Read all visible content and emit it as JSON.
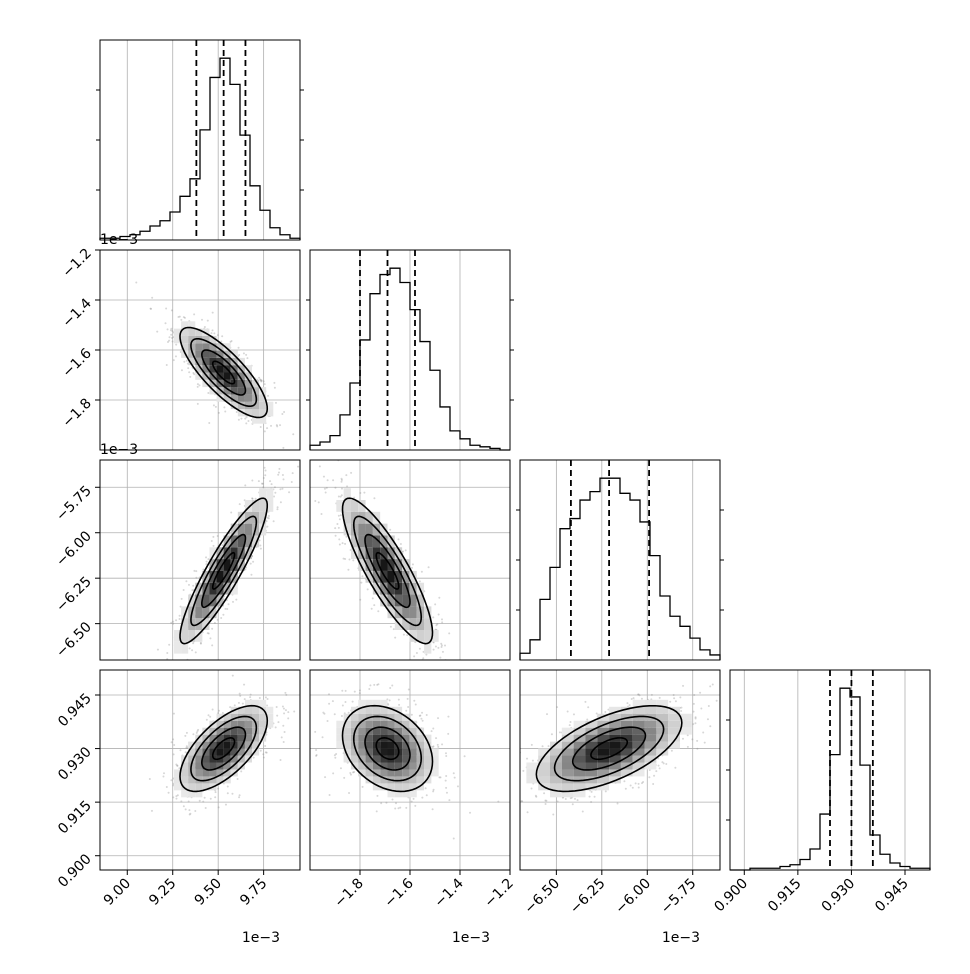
{
  "chart_data": {
    "type": "corner",
    "parameters": [
      {
        "xlim": [
          8.85,
          9.95
        ],
        "ticks": [
          9.0,
          9.25,
          9.5,
          9.75
        ],
        "tick_labels": [
          "9.00",
          "9.25",
          "9.50",
          "9.75"
        ],
        "offset_label": "1e−3"
      },
      {
        "xlim": [
          -2.0,
          -1.2
        ],
        "ticks": [
          -1.8,
          -1.6,
          -1.4,
          -1.2
        ],
        "tick_labels": [
          "−1.8",
          "−1.6",
          "−1.4",
          "−1.2"
        ],
        "offset_label": "1e−3"
      },
      {
        "xlim": [
          -6.7,
          -5.6
        ],
        "ticks": [
          -6.5,
          -6.25,
          -6.0,
          -5.75
        ],
        "tick_labels": [
          "−6.50",
          "−6.25",
          "−6.00",
          "−5.75"
        ],
        "offset_label": "1e−3"
      },
      {
        "xlim": [
          0.896,
          0.952
        ],
        "ticks": [
          0.9,
          0.915,
          0.93,
          0.945
        ],
        "tick_labels": [
          "0.900",
          "0.915",
          "0.930",
          "0.945"
        ],
        "offset_label": ""
      }
    ],
    "marginals": [
      {
        "quantiles": [
          9.38,
          9.53,
          9.65
        ],
        "hist": [
          1,
          1,
          2,
          3,
          5,
          8,
          11,
          16,
          25,
          35,
          63,
          93,
          104,
          89,
          60,
          31,
          17,
          7,
          3,
          1
        ]
      },
      {
        "quantiles": [
          -1.8,
          -1.69,
          -1.58
        ],
        "hist": [
          3,
          5,
          9,
          22,
          42,
          69,
          98,
          110,
          114,
          105,
          88,
          68,
          50,
          27,
          12,
          7,
          3,
          2,
          1,
          0
        ]
      },
      {
        "quantiles": [
          -6.42,
          -6.21,
          -5.99
        ],
        "hist": [
          4,
          12,
          36,
          55,
          78,
          84,
          95,
          100,
          108,
          108,
          99,
          95,
          82,
          62,
          38,
          26,
          20,
          13,
          6,
          3
        ]
      },
      {
        "quantiles": [
          0.924,
          0.93,
          0.936
        ],
        "hist": [
          0,
          0,
          1,
          1,
          1,
          2,
          3,
          6,
          12,
          32,
          66,
          104,
          99,
          60,
          20,
          9,
          4,
          2,
          1,
          1
        ]
      }
    ],
    "pairs": [
      {
        "row": 1,
        "col": 0,
        "mean": [
          9.53,
          -1.69
        ],
        "cov": [
          [
            0.0144,
            -0.00864
          ],
          [
            -0.00864,
            0.0081
          ]
        ]
      },
      {
        "row": 2,
        "col": 0,
        "mean": [
          9.53,
          -6.21
        ],
        "cov": [
          [
            0.0144,
            0.0216
          ],
          [
            0.0216,
            0.04
          ]
        ]
      },
      {
        "row": 2,
        "col": 1,
        "mean": [
          -1.69,
          -6.21
        ],
        "cov": [
          [
            0.0081,
            -0.0153
          ],
          [
            -0.0153,
            0.04
          ]
        ]
      },
      {
        "row": 3,
        "col": 0,
        "mean": [
          9.53,
          0.93
        ],
        "cov": [
          [
            0.0144,
            0.000468
          ],
          [
            0.000468,
            3.6e-05
          ]
        ]
      },
      {
        "row": 3,
        "col": 1,
        "mean": [
          -1.69,
          0.93
        ],
        "cov": [
          [
            0.0081,
            -0.000162
          ],
          [
            -0.000162,
            3.6e-05
          ]
        ]
      },
      {
        "row": 3,
        "col": 2,
        "mean": [
          -6.21,
          0.93
        ],
        "cov": [
          [
            0.04,
            0.00072
          ],
          [
            0.00072,
            3.6e-05
          ]
        ]
      }
    ],
    "contour_levels_sigma": [
      0.5,
      1.0,
      1.5,
      2.0
    ],
    "grid": true,
    "colors": {
      "points": "#8c8c8c",
      "line": "#000000",
      "grid": "#b0b0b0"
    }
  }
}
